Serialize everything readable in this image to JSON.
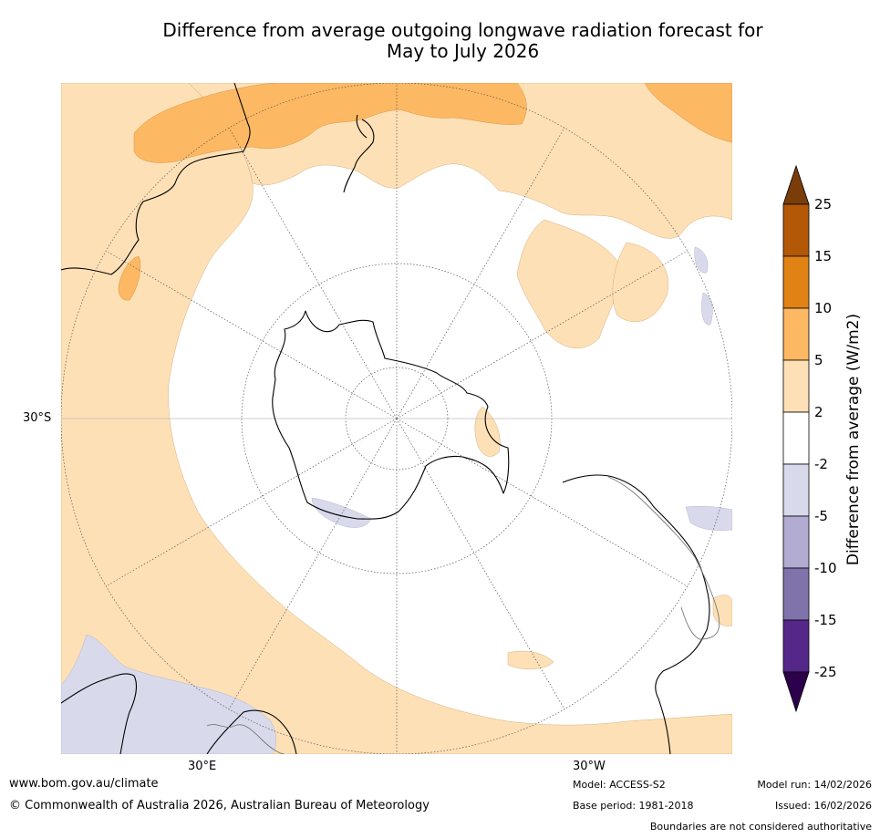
{
  "title": {
    "line1": "Difference from average outgoing longwave radiation forecast for",
    "line2": "May to July 2026"
  },
  "map": {
    "projection": "South polar stereographic",
    "lat_label_west": "30°S",
    "lon_label_left": "30°E",
    "lon_label_right": "30°W",
    "land_outline_color": "#000000",
    "graticule_color": "#555555"
  },
  "colorbar": {
    "title": "Difference from average (W/m2)",
    "ticks": [
      "25",
      "15",
      "10",
      "5",
      "2",
      "-2",
      "-5",
      "-10",
      "-15",
      "-25"
    ],
    "colors": {
      "over": "#7a3d0a",
      "b15_25": "#b35806",
      "b10_15": "#e08214",
      "b5_10": "#fdb863",
      "b2_5": "#fee0b6",
      "bm2_2": "#ffffff",
      "bm5_m2": "#d8daeb",
      "bm10_m5": "#b2abd2",
      "bm15_m10": "#8073ac",
      "bm25_m15": "#542788",
      "under": "#2d004b"
    }
  },
  "footer": {
    "website": "www.bom.gov.au/climate",
    "copyright": "© Commonwealth of Australia 2026, Australian Bureau of Meteorology",
    "model": "Model: ACCESS-S2",
    "base_period": "Base period: 1981-2018",
    "model_run": "Model run: 14/02/2026",
    "issued": "Issued: 16/02/2026",
    "disclaimer": "Boundaries are not considered authoritative"
  }
}
